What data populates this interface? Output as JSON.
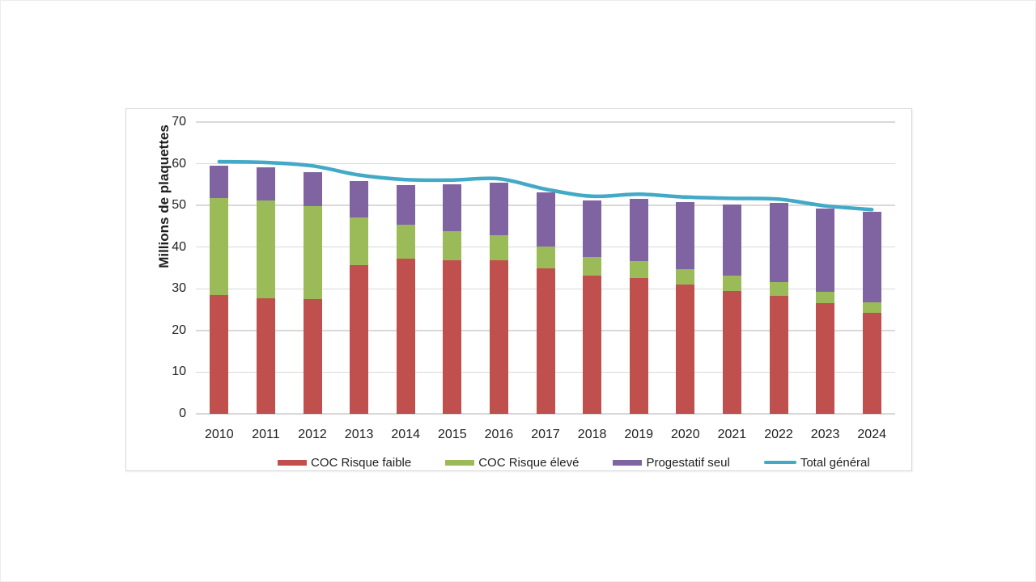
{
  "colors": {
    "coc_low_risk": "#C0504D",
    "coc_high_risk": "#9BBB59",
    "progestin_only": "#8064A2",
    "total_line": "#42A9C6",
    "gridline": "#D9D9D9",
    "text": "#1f1f1f"
  },
  "chart_data": {
    "type": "bar",
    "subtype": "stacked-bars-with-line-overlay",
    "title": "",
    "ylabel": "Millions de plaquettes",
    "xlabel": "",
    "ylim": [
      0,
      70
    ],
    "yticks": [
      "0",
      "10",
      "20",
      "30",
      "40",
      "50",
      "60",
      "70"
    ],
    "grid": "horizontal",
    "legend_position": "bottom",
    "categories": [
      "2010",
      "2011",
      "2012",
      "2013",
      "2014",
      "2015",
      "2016",
      "2017",
      "2018",
      "2019",
      "2020",
      "2021",
      "2022",
      "2023",
      "2024"
    ],
    "series": [
      {
        "name": "COC Risque faible",
        "type": "bar",
        "color": "#C0504D",
        "values": [
          28.5,
          27.8,
          27.5,
          35.6,
          37.2,
          36.8,
          36.8,
          35.0,
          33.1,
          32.6,
          31.0,
          29.4,
          28.3,
          26.5,
          24.3
        ]
      },
      {
        "name": "COC Risque élevé",
        "type": "bar",
        "color": "#9BBB59",
        "values": [
          23.2,
          23.4,
          22.4,
          11.6,
          8.1,
          7.1,
          6.0,
          5.1,
          4.5,
          4.0,
          3.8,
          3.7,
          3.3,
          2.8,
          2.5
        ]
      },
      {
        "name": "Progestatif seul",
        "type": "bar",
        "color": "#8064A2",
        "values": [
          7.8,
          8.0,
          8.0,
          8.7,
          9.6,
          11.2,
          12.6,
          13.1,
          13.6,
          14.9,
          16.1,
          17.2,
          19.0,
          20.0,
          21.7
        ]
      },
      {
        "name": "Total général",
        "type": "line",
        "color": "#42A9C6",
        "values": [
          60.5,
          60.3,
          59.5,
          57.3,
          56.2,
          56.1,
          56.4,
          53.9,
          52.2,
          52.7,
          52.0,
          51.7,
          51.5,
          49.9,
          49.0
        ]
      }
    ]
  }
}
